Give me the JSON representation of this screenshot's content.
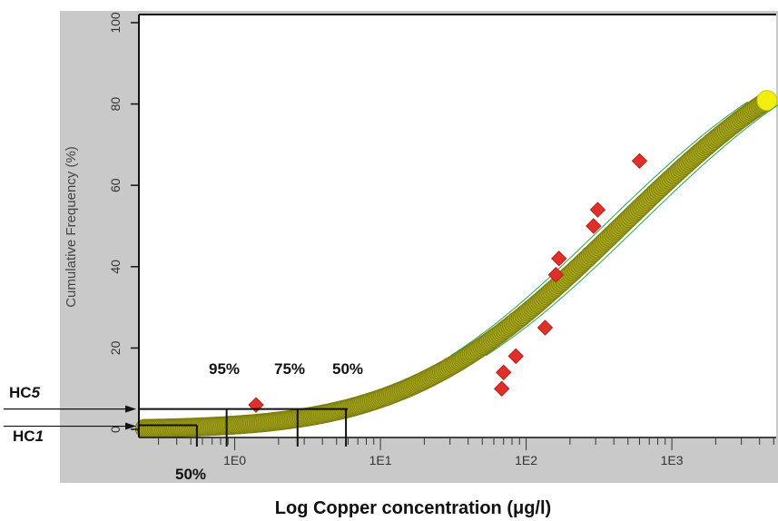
{
  "chart_data": {
    "type": "scatter",
    "xlabel": "Log Copper concentration (μg/l)",
    "ylabel": "Cumulative Frequency (%)",
    "x_scale": "log",
    "xlim": [
      0.22,
      5200
    ],
    "ylim": [
      -2,
      102
    ],
    "x_ticks": [
      {
        "value": 1,
        "label": "1E0"
      },
      {
        "value": 10,
        "label": "1E1"
      },
      {
        "value": 100,
        "label": "1E2"
      },
      {
        "value": 1000,
        "label": "1E3"
      }
    ],
    "y_ticks": [
      0,
      20,
      40,
      60,
      80,
      100
    ],
    "fit_curve": {
      "log10_median": 2.65,
      "log10_sd": 1.15,
      "color": "#a6a61a",
      "edge": "#7c7c10"
    },
    "observed_points": {
      "color": "#e0302a",
      "points": [
        {
          "x": 1.4,
          "y": 6
        },
        {
          "x": 68,
          "y": 10
        },
        {
          "x": 70,
          "y": 14
        },
        {
          "x": 85,
          "y": 18
        },
        {
          "x": 135,
          "y": 25
        },
        {
          "x": 160,
          "y": 38
        },
        {
          "x": 168,
          "y": 42
        },
        {
          "x": 290,
          "y": 50
        },
        {
          "x": 310,
          "y": 54
        },
        {
          "x": 600,
          "y": 66
        }
      ]
    },
    "confidence_bounds": {
      "color": "#2aa14a"
    },
    "annotations": {
      "confidence_labels": [
        "95%",
        "75%",
        "50%"
      ],
      "lower_label": "50%",
      "hc5": {
        "label_prefix": "HC",
        "label_suffix": "5",
        "y": 5
      },
      "hc1": {
        "label_prefix": "HC",
        "label_suffix": "1",
        "y": 1
      },
      "hc5_bracket_x": [
        0.28,
        0.88,
        2.7,
        5.8
      ],
      "hc1_bracket_x": [
        0.55
      ]
    },
    "panel_colors": {
      "outer": "#c9c9c9",
      "plot": "#ffffff"
    }
  }
}
